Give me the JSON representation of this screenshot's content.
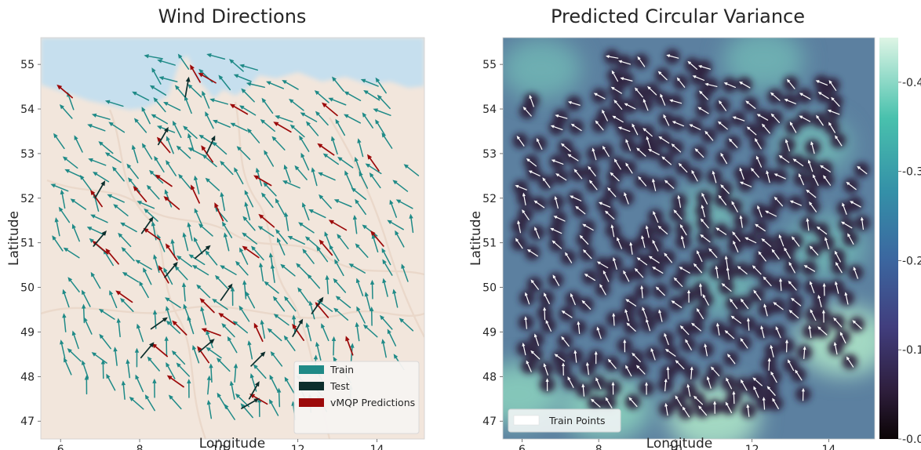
{
  "colors": {
    "train": "#1f8a87",
    "test": "#0c2e2c",
    "pred": "#9c0a0a",
    "white_arrow": "#ffffff"
  },
  "chart_data": [
    {
      "type": "scatter",
      "subtype": "quiver",
      "title": "Wind Directions",
      "xlabel": "Longitude",
      "ylabel": "Latitude",
      "xlim": [
        5.5,
        15.2
      ],
      "ylim": [
        46.6,
        55.6
      ],
      "xticks": [
        6,
        8,
        10,
        12,
        14
      ],
      "yticks": [
        47,
        48,
        49,
        50,
        51,
        52,
        53,
        54,
        55
      ],
      "background": "map of Germany (land) and North/Baltic Sea (water)",
      "legend": {
        "position": "bottom-right",
        "entries": [
          "Train",
          "Test",
          "vMQP Predictions"
        ]
      },
      "series": [
        {
          "name": "Train",
          "color": "#1f8a87",
          "points": "approximately 330 station arrows across the domain"
        },
        {
          "name": "Test",
          "color": "#0c2e2c",
          "points": [
            [
              9.2,
              54.5,
              80
            ],
            [
              8.6,
              53.4,
              60
            ],
            [
              9.8,
              53.2,
              65
            ],
            [
              7.0,
              52.2,
              60
            ],
            [
              8.2,
              51.4,
              55
            ],
            [
              7.0,
              51.1,
              50
            ],
            [
              9.6,
              50.8,
              40
            ],
            [
              8.8,
              50.4,
              50
            ],
            [
              10.2,
              49.9,
              55
            ],
            [
              8.5,
              49.2,
              35
            ],
            [
              9.7,
              48.7,
              40
            ],
            [
              8.2,
              48.6,
              50
            ],
            [
              11.0,
              48.4,
              45
            ],
            [
              10.9,
              47.7,
              60
            ],
            [
              10.8,
              47.4,
              30
            ],
            [
              12.0,
              49.1,
              60
            ],
            [
              12.5,
              49.6,
              55
            ]
          ]
        },
        {
          "name": "vMQP Predictions",
          "color": "#9c0a0a",
          "points": [
            [
              6.1,
              54.4,
              140
            ],
            [
              9.7,
              54.7,
              150
            ],
            [
              9.4,
              54.8,
              120
            ],
            [
              12.8,
              54.0,
              140
            ],
            [
              10.5,
              54.0,
              150
            ],
            [
              11.6,
              53.6,
              150
            ],
            [
              8.6,
              53.2,
              130
            ],
            [
              9.7,
              53.0,
              125
            ],
            [
              12.7,
              53.1,
              145
            ],
            [
              13.9,
              52.8,
              125
            ],
            [
              11.1,
              52.4,
              150
            ],
            [
              8.6,
              52.4,
              145
            ],
            [
              6.9,
              52.0,
              125
            ],
            [
              8.0,
              52.1,
              130
            ],
            [
              8.8,
              51.9,
              140
            ],
            [
              9.4,
              52.1,
              115
            ],
            [
              10.0,
              51.7,
              115
            ],
            [
              11.2,
              51.5,
              140
            ],
            [
              13.0,
              51.4,
              150
            ],
            [
              8.3,
              51.2,
              145
            ],
            [
              7.3,
              50.7,
              130
            ],
            [
              7.0,
              50.9,
              140
            ],
            [
              10.8,
              50.8,
              145
            ],
            [
              8.6,
              50.3,
              120
            ],
            [
              12.7,
              50.9,
              130
            ],
            [
              14.0,
              51.1,
              130
            ],
            [
              8.8,
              50.8,
              125
            ],
            [
              7.6,
              49.8,
              145
            ],
            [
              9.7,
              49.6,
              135
            ],
            [
              10.2,
              49.3,
              145
            ],
            [
              12.6,
              49.5,
              130
            ],
            [
              11.0,
              49.0,
              115
            ],
            [
              12.0,
              49.0,
              125
            ],
            [
              9.0,
              49.1,
              135
            ],
            [
              9.6,
              48.5,
              125
            ],
            [
              8.5,
              48.6,
              140
            ],
            [
              8.9,
              47.9,
              145
            ],
            [
              11.0,
              47.5,
              150
            ],
            [
              13.3,
              48.7,
              110
            ],
            [
              9.8,
              49.0,
              160
            ]
          ]
        }
      ]
    },
    {
      "type": "heatmap",
      "title": "Predicted Circular Variance",
      "xlabel": "Longitude",
      "ylabel": "Latitude",
      "xlim": [
        5.5,
        15.2
      ],
      "ylim": [
        46.6,
        55.6
      ],
      "xticks": [
        6,
        8,
        10,
        12,
        14
      ],
      "yticks": [
        47,
        48,
        49,
        50,
        51,
        52,
        53,
        54,
        55
      ],
      "colormap": "mako",
      "colorbar": {
        "ticks": [
          0.0,
          0.1,
          0.2,
          0.3,
          0.4
        ],
        "range": [
          0.0,
          0.45
        ]
      },
      "high_variance_regions": [
        {
          "lon": 14.4,
          "lat": 48.8,
          "value": 0.42
        },
        {
          "lon": 11.0,
          "lat": 47.1,
          "value": 0.4
        },
        {
          "lon": 8.2,
          "lat": 47.3,
          "value": 0.36
        },
        {
          "lon": 5.9,
          "lat": 47.6,
          "value": 0.33
        },
        {
          "lon": 13.9,
          "lat": 50.9,
          "value": 0.3
        },
        {
          "lon": 6.5,
          "lat": 54.9,
          "value": 0.28
        },
        {
          "lon": 12.3,
          "lat": 55.1,
          "value": 0.28
        },
        {
          "lon": 13.6,
          "lat": 53.2,
          "value": 0.24
        },
        {
          "lon": 11.2,
          "lat": 50.0,
          "value": 0.22
        },
        {
          "lon": 10.9,
          "lat": 51.7,
          "value": 0.2
        }
      ],
      "low_variance": "near training stations (values close to 0.0)",
      "legend": {
        "position": "bottom-left",
        "entries": [
          "Train Points"
        ]
      }
    }
  ]
}
